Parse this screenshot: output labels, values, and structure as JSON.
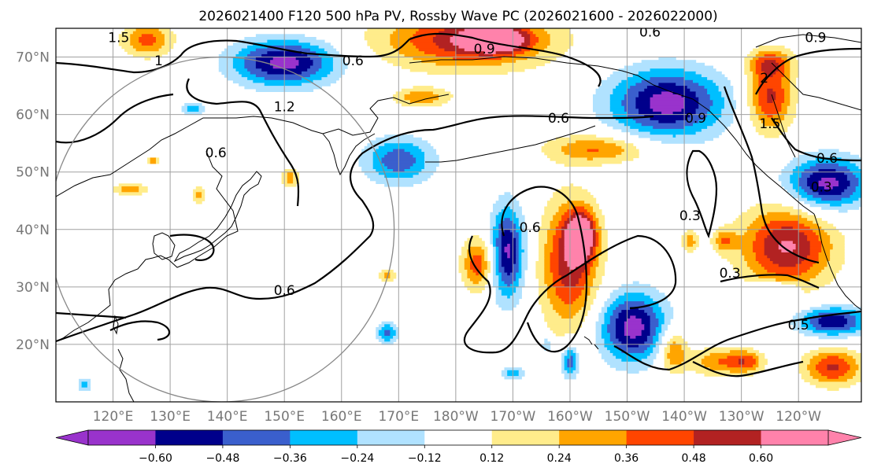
{
  "title": "2026021400 F120 500 hPa PV, Rossby Wave PC (2026021600 - 2026022000)",
  "map": {
    "projection": "PlateCarree",
    "extent": {
      "lon_min": 110,
      "lon_max": 251,
      "lat_min": 10,
      "lat_max": 75
    },
    "lat_labels": [
      {
        "lat": 70,
        "label": "70°N"
      },
      {
        "lat": 60,
        "label": "60°N"
      },
      {
        "lat": 50,
        "label": "50°N"
      },
      {
        "lat": 40,
        "label": "40°N"
      },
      {
        "lat": 30,
        "label": "30°N"
      },
      {
        "lat": 20,
        "label": "20°N"
      }
    ],
    "lon_labels": [
      {
        "lon": 120,
        "label": "120°E"
      },
      {
        "lon": 130,
        "label": "130°E"
      },
      {
        "lon": 140,
        "label": "140°E"
      },
      {
        "lon": 150,
        "label": "150°E"
      },
      {
        "lon": 160,
        "label": "160°E"
      },
      {
        "lon": 170,
        "label": "170°E"
      },
      {
        "lon": 180,
        "label": "180°W"
      },
      {
        "lon": 190,
        "label": "170°W"
      },
      {
        "lon": 200,
        "label": "160°W"
      },
      {
        "lon": 210,
        "label": "150°W"
      },
      {
        "lon": 220,
        "label": "140°W"
      },
      {
        "lon": 230,
        "label": "130°W"
      },
      {
        "lon": 240,
        "label": "120°W"
      }
    ],
    "gridlines": true,
    "reference_circle": {
      "center_lon": 139,
      "center_lat": 40,
      "radius_deg": 30,
      "color": "#888888"
    }
  },
  "colorbar": {
    "orientation": "horizontal",
    "extend": "both",
    "levels": [
      -0.72,
      -0.6,
      -0.48,
      -0.36,
      -0.24,
      -0.12,
      0.12,
      0.24,
      0.36,
      0.48,
      0.6,
      0.72
    ],
    "colors": [
      "#9933cc",
      "#00008b",
      "#3a5fcd",
      "#00bfff",
      "#b0e2ff",
      "#ffffff",
      "#ffec8b",
      "#ffa500",
      "#ff4500",
      "#b22222",
      "#ff82ab"
    ],
    "tick_labels": [
      "−0.60",
      "−0.48",
      "−0.36",
      "−0.24",
      "−0.12",
      "0.12",
      "0.24",
      "0.36",
      "0.48",
      "0.60"
    ],
    "tick_values": [
      -0.6,
      -0.48,
      -0.36,
      -0.24,
      -0.12,
      0.12,
      0.24,
      0.36,
      0.48,
      0.6
    ]
  },
  "contour_labels": [
    {
      "text": "1.5",
      "lon": 121,
      "lat": 73
    },
    {
      "text": "1",
      "lon": 128,
      "lat": 69
    },
    {
      "text": "0.6",
      "lon": 162,
      "lat": 69
    },
    {
      "text": "0.9",
      "lon": 185,
      "lat": 71
    },
    {
      "text": "0.6",
      "lon": 214,
      "lat": 74
    },
    {
      "text": "0.9",
      "lon": 243,
      "lat": 73
    },
    {
      "text": "1.2",
      "lon": 150,
      "lat": 61
    },
    {
      "text": "0.6",
      "lon": 138,
      "lat": 53
    },
    {
      "text": "0.6",
      "lon": 198,
      "lat": 59
    },
    {
      "text": "0.9",
      "lon": 222,
      "lat": 59
    },
    {
      "text": "2",
      "lon": 234,
      "lat": 66
    },
    {
      "text": "1.5",
      "lon": 235,
      "lat": 58
    },
    {
      "text": "0.6",
      "lon": 245,
      "lat": 52
    },
    {
      "text": "0.3",
      "lon": 244,
      "lat": 47
    },
    {
      "text": "0.3",
      "lon": 221,
      "lat": 42
    },
    {
      "text": "0.6",
      "lon": 193,
      "lat": 40
    },
    {
      "text": "0.3",
      "lon": 228,
      "lat": 32
    },
    {
      "text": "0.6",
      "lon": 150,
      "lat": 29
    },
    {
      "text": "0.5",
      "lon": 240,
      "lat": 23
    }
  ],
  "pc_anomalies": [
    {
      "lon": 150,
      "lat": 69,
      "rx": 9,
      "ry": 4,
      "amp": -0.66
    },
    {
      "lon": 126,
      "lat": 73,
      "rx": 4.5,
      "ry": 3,
      "amp": 0.4
    },
    {
      "lon": 182,
      "lat": 73,
      "rx": 15,
      "ry": 5,
      "amp": 0.56
    },
    {
      "lon": 187,
      "lat": 73,
      "rx": 5,
      "ry": 2,
      "amp": 0.68
    },
    {
      "lon": 174,
      "lat": 63,
      "rx": 5,
      "ry": 1.6,
      "amp": 0.34
    },
    {
      "lon": 217,
      "lat": 62,
      "rx": 10,
      "ry": 6,
      "amp": -0.66
    },
    {
      "lon": 134,
      "lat": 61,
      "rx": 2,
      "ry": 1.2,
      "amp": -0.3
    },
    {
      "lon": 170,
      "lat": 52,
      "rx": 6,
      "ry": 4,
      "amp": -0.45
    },
    {
      "lon": 205,
      "lat": 54,
      "rx": 9,
      "ry": 2.5,
      "amp": 0.38
    },
    {
      "lon": 235,
      "lat": 63,
      "rx": 4,
      "ry": 6,
      "amp": 0.52
    },
    {
      "lon": 235,
      "lat": 69,
      "rx": 4,
      "ry": 2.5,
      "amp": 0.35
    },
    {
      "lon": 245,
      "lat": 48,
      "rx": 7,
      "ry": 4.5,
      "amp": -0.66
    },
    {
      "lon": 238,
      "lat": 37,
      "rx": 8,
      "ry": 7,
      "amp": 0.62
    },
    {
      "lon": 221,
      "lat": 38,
      "rx": 1.5,
      "ry": 2,
      "amp": 0.3
    },
    {
      "lon": 184,
      "lat": 34,
      "rx": 3,
      "ry": 4.5,
      "amp": 0.45
    },
    {
      "lon": 189,
      "lat": 36,
      "rx": 3,
      "ry": 8,
      "amp": -0.64
    },
    {
      "lon": 200,
      "lat": 34,
      "rx": 5,
      "ry": 11,
      "amp": 0.56
    },
    {
      "lon": 202,
      "lat": 39,
      "rx": 2.5,
      "ry": 4,
      "amp": 0.65
    },
    {
      "lon": 211,
      "lat": 23,
      "rx": 6,
      "ry": 6,
      "amp": -0.66
    },
    {
      "lon": 196,
      "lat": 20,
      "rx": 1,
      "ry": 1.2,
      "amp": -0.3
    },
    {
      "lon": 200,
      "lat": 17,
      "rx": 1.5,
      "ry": 3,
      "amp": -0.45
    },
    {
      "lon": 190,
      "lat": 15,
      "rx": 2,
      "ry": 1.2,
      "amp": -0.32
    },
    {
      "lon": 218,
      "lat": 19,
      "rx": 2.5,
      "ry": 4,
      "amp": 0.4
    },
    {
      "lon": 226,
      "lat": 17,
      "rx": 5,
      "ry": 2.5,
      "amp": 0.34
    },
    {
      "lon": 246,
      "lat": 16,
      "rx": 5,
      "ry": 3.2,
      "amp": 0.5
    },
    {
      "lon": 246,
      "lat": 24,
      "rx": 6,
      "ry": 2.5,
      "amp": -0.6
    },
    {
      "lon": 236,
      "lat": 30,
      "rx": 4,
      "ry": 1,
      "amp": -0.28
    },
    {
      "lon": 231,
      "lat": 17,
      "rx": 3,
      "ry": 2,
      "amp": 0.35
    },
    {
      "lon": 151,
      "lat": 49,
      "rx": 1.6,
      "ry": 1.8,
      "amp": 0.3
    },
    {
      "lon": 123,
      "lat": 47,
      "rx": 3,
      "ry": 1.2,
      "amp": 0.3
    },
    {
      "lon": 135,
      "lat": 46,
      "rx": 1,
      "ry": 1.5,
      "amp": 0.3
    },
    {
      "lon": 168,
      "lat": 32,
      "rx": 1.5,
      "ry": 1.2,
      "amp": 0.32
    },
    {
      "lon": 168,
      "lat": 22,
      "rx": 2,
      "ry": 2,
      "amp": -0.38
    },
    {
      "lon": 115,
      "lat": 13,
      "rx": 1,
      "ry": 1,
      "amp": -0.4
    },
    {
      "lon": 227,
      "lat": 38,
      "rx": 2,
      "ry": 2,
      "amp": 0.3
    },
    {
      "lon": 127,
      "lat": 52,
      "rx": 1,
      "ry": 0.8,
      "amp": 0.3
    }
  ]
}
